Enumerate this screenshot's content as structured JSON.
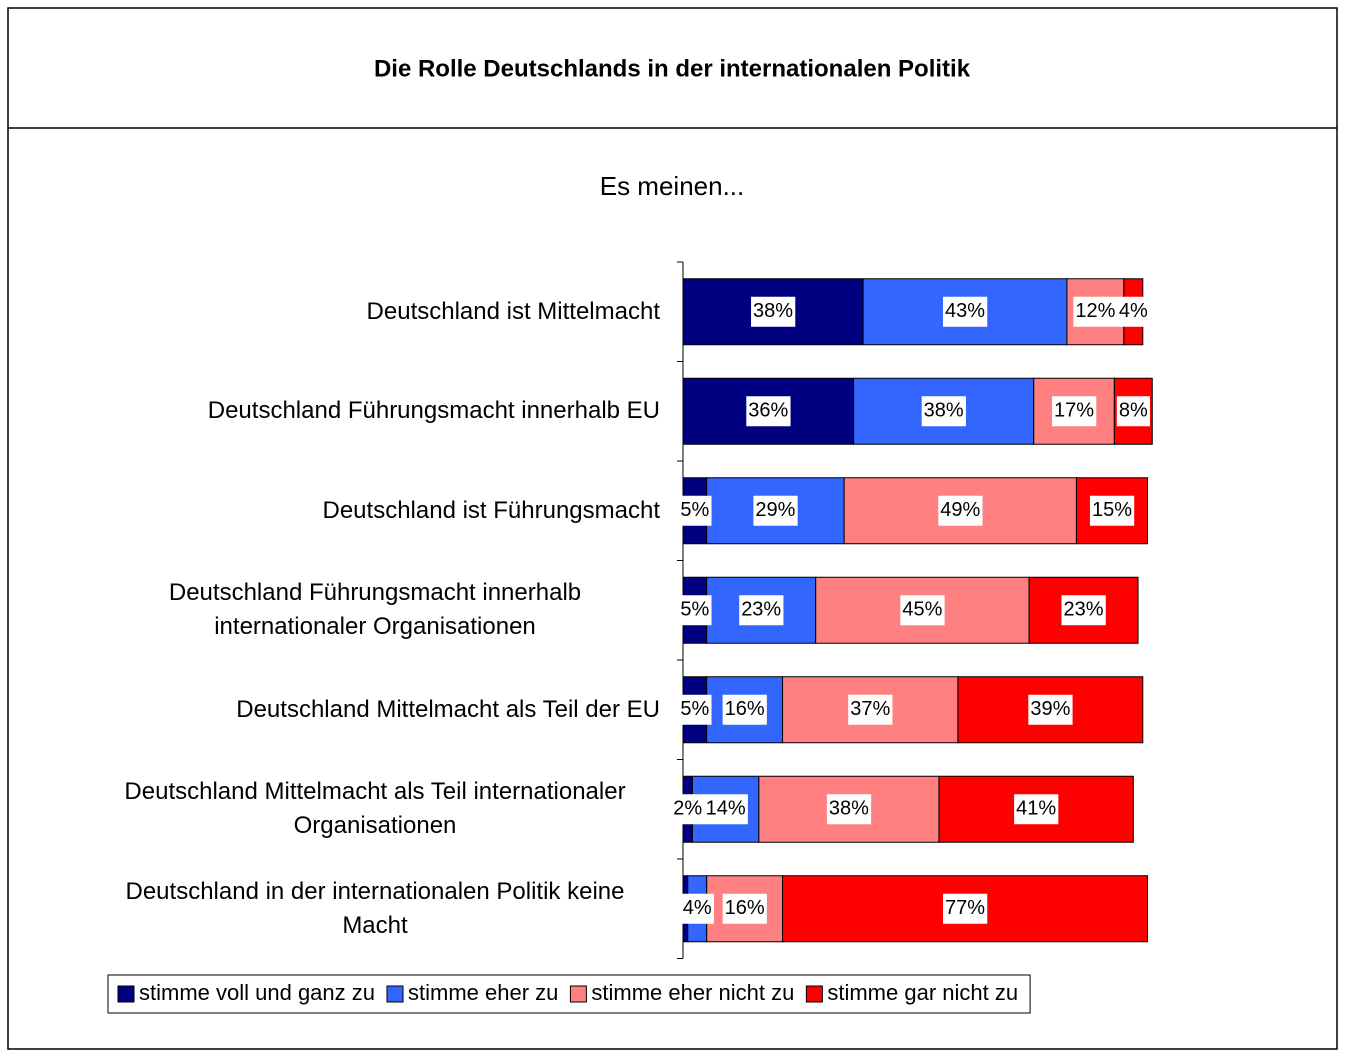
{
  "chart_data": {
    "type": "stacked-barh",
    "title": "Die Rolle Deutschlands in der internationalen Politik",
    "subtitle": "Es meinen...",
    "categories": [
      "Deutschland ist Mittelmacht",
      "Deutschland Führungsmacht innerhalb EU",
      "Deutschland ist Führungsmacht",
      "Deutschland Führungsmacht innerhalb internationaler Organisationen",
      "Deutschland Mittelmacht als Teil der EU",
      "Deutschland Mittelmacht als Teil internationaler Organisationen",
      "Deutschland in der internationalen Politik keine Macht"
    ],
    "series": [
      {
        "name": "stimme voll und ganz zu",
        "color": "#000080",
        "values": [
          38,
          36,
          5,
          5,
          5,
          2,
          1
        ],
        "value_labels": [
          "38%",
          "36%",
          "5%",
          "5%",
          "5%",
          "2%",
          null
        ]
      },
      {
        "name": "stimme eher zu",
        "color": "#3366ff",
        "values": [
          43,
          38,
          29,
          23,
          16,
          14,
          4
        ],
        "value_labels": [
          "43%",
          "38%",
          "29%",
          "23%",
          "16%",
          "14%",
          "4%"
        ]
      },
      {
        "name": "stimme eher nicht zu",
        "color": "#ff8080",
        "values": [
          12,
          17,
          49,
          45,
          37,
          38,
          16
        ],
        "value_labels": [
          "12%",
          "17%",
          "49%",
          "45%",
          "37%",
          "38%",
          "16%"
        ]
      },
      {
        "name": "stimme gar nicht zu",
        "color": "#ff0000",
        "values": [
          4,
          8,
          15,
          23,
          39,
          41,
          77
        ],
        "value_labels": [
          "4%",
          "8%",
          "15%",
          "23%",
          "39%",
          "41%",
          "77%"
        ]
      }
    ],
    "legend": "bottom"
  }
}
